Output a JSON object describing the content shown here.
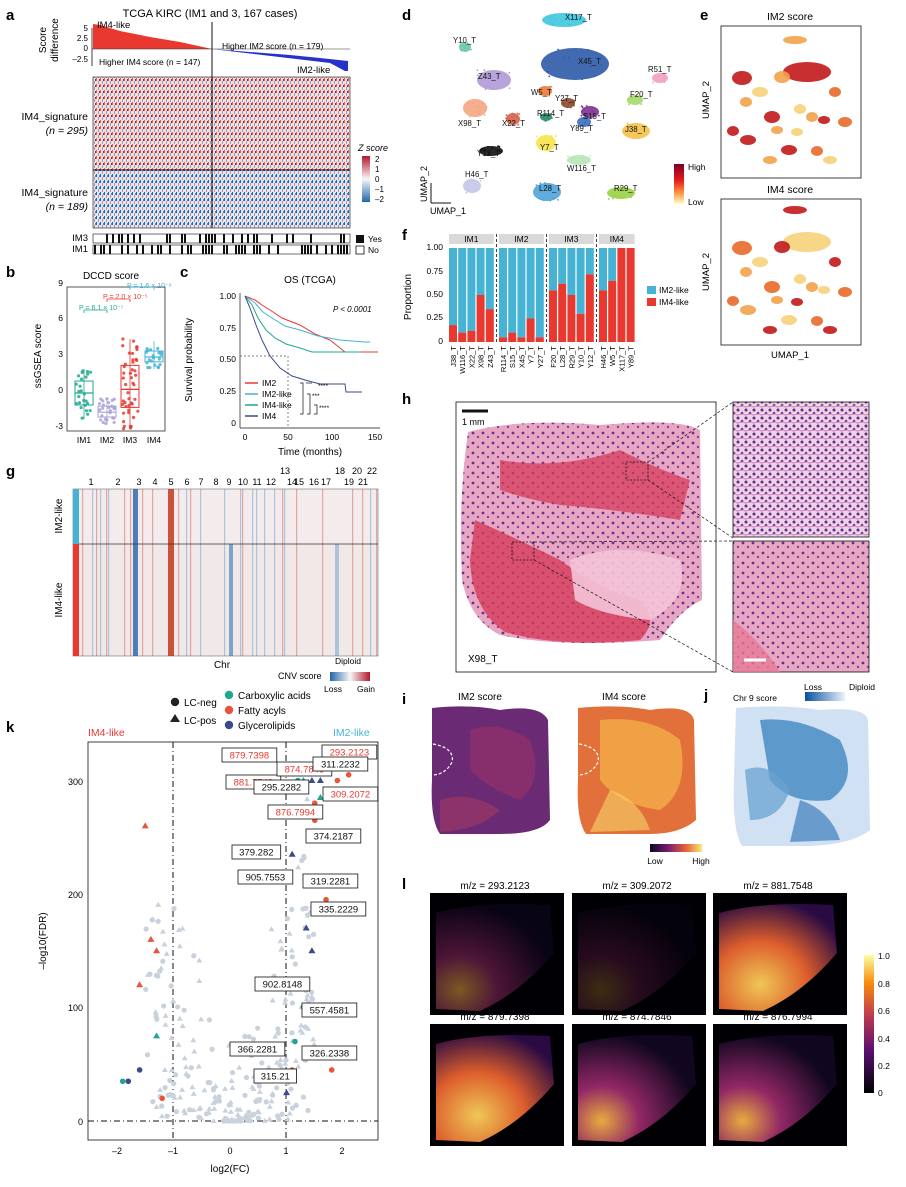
{
  "panels": {
    "a": "a",
    "b": "b",
    "c": "c",
    "d": "d",
    "e": "e",
    "f": "f",
    "g": "g",
    "h": "h",
    "i": "i",
    "j": "j",
    "k": "k",
    "l": "l"
  },
  "a": {
    "title": "TCGA KIRC (IM1 and 3, 167 cases)",
    "ylabel1": "Score",
    "ylabel2": "difference",
    "im4_like": "IM4-like",
    "im2_like": "IM2-like",
    "higher_im2": "Higher IM2 score (n = 179)",
    "higher_im4": "Higher IM4 score (n = 147)",
    "ticks": [
      "5",
      "2.5",
      "0",
      "–2.5"
    ],
    "row1a": "IM4_signature",
    "row1b": "(n = 295)",
    "row2a": "IM4_signature",
    "row2b": "(n = 189)",
    "zscore": "Z score",
    "zticks": [
      "2",
      "1",
      "0",
      "–1",
      "–2"
    ],
    "im3": "IM3",
    "im1": "IM1",
    "yes": "Yes",
    "no": "No"
  },
  "b": {
    "title": "DCCD score",
    "ylabel": "ssGSEA score",
    "groups": [
      "IM1",
      "IM2",
      "IM3",
      "IM4"
    ],
    "yticks": [
      "9",
      "6",
      "3",
      "0",
      "-3"
    ],
    "p1": "P = 1.6 × 10⁻⁸",
    "p2": "P = 2.0 × 10⁻⁵",
    "p3": "P = 6.1 × 10⁻⁷"
  },
  "c": {
    "title": "OS (TCGA)",
    "pval": "P < 0.0001",
    "ylabel": "Survival probability",
    "xlabel": "Time (months)",
    "yticks": [
      "1.00",
      "0.75",
      "0.50",
      "0.25",
      "0"
    ],
    "xticks": [
      "0",
      "50",
      "100",
      "150"
    ],
    "legend": [
      "IM2",
      "IM2-like",
      "IM4-like",
      "IM4"
    ],
    "stars": [
      "****",
      "***",
      "****",
      "****"
    ]
  },
  "d": {
    "clusters": [
      "X117_T",
      "Y10_T",
      "X45_T",
      "R51_T",
      "Z43_T",
      "W5_T",
      "F20_T",
      "Y27_T",
      "X98_T",
      "X22_T",
      "R114_T",
      "S15_T",
      "Y89_T",
      "J38_T",
      "Y7_T",
      "Y12_T",
      "W116_T",
      "H46_T",
      "L28_T",
      "R29_T"
    ],
    "umap1": "UMAP_1",
    "umap2": "UMAP_2",
    "high": "High",
    "low": "Low"
  },
  "e": {
    "title1": "IM2 score",
    "title2": "IM4 score",
    "umap1": "UMAP_1",
    "umap2a": "UMAP_2",
    "umap2b": "UMAP_2"
  },
  "f": {
    "ylabel": "Proportion",
    "yticks": [
      "1.00",
      "0.75",
      "0.50",
      "0.25",
      "0"
    ],
    "groups": [
      "IM1",
      "IM2",
      "IM3",
      "IM4"
    ],
    "legend": [
      "IM2-like",
      "IM4-like"
    ],
    "samples": [
      "J38_T",
      "W116_T",
      "X22_T",
      "X98_T",
      "Z43_T",
      "R114_T",
      "S15_T",
      "X45_T",
      "Y7_T",
      "Y27_T",
      "F20_T",
      "L28_T",
      "R29_T",
      "Y10_T",
      "Y12_T",
      "H46_T",
      "W5_T",
      "X117_T",
      "Y89_T"
    ],
    "im4_fraction": [
      0.18,
      0.1,
      0.12,
      0.5,
      0.35,
      0.05,
      0.1,
      0.05,
      0.25,
      0.05,
      0.55,
      0.62,
      0.5,
      0.3,
      0.72,
      0.55,
      0.65,
      1.0,
      1.0
    ]
  },
  "g": {
    "chr_numbers": [
      "1",
      "2",
      "3",
      "4",
      "5",
      "6",
      "7",
      "8",
      "9",
      "10",
      "11",
      "12",
      "13",
      "14",
      "15",
      "16",
      "17",
      "18",
      "19",
      "20",
      "21",
      "22"
    ],
    "im2_like": "IM2-like",
    "im4_like": "IM4-like",
    "chr": "Chr",
    "cnv": "CNV score",
    "diploid": "Diploid",
    "loss": "Loss",
    "gain": "Gain"
  },
  "h": {
    "scale": "1 mm",
    "sample": "X98_T"
  },
  "i": {
    "title1": "IM2 score",
    "title2": "IM4 score",
    "low": "Low",
    "high": "High"
  },
  "j": {
    "title": "Chr 9 score",
    "loss": "Loss",
    "diploid": "Diploid"
  },
  "k": {
    "legend": [
      "LC-neg",
      "LC-pos",
      "Carboxylic acids",
      "Fatty acyls",
      "Glycerolipids"
    ],
    "im4_like": "IM4-like",
    "im2_like": "IM2-like",
    "ylabel": "–log10(FDR)",
    "xlabel": "log2(FC)",
    "yticks": [
      "300",
      "200",
      "100",
      "0"
    ],
    "xticks": [
      "–2",
      "–1",
      "0",
      "1",
      "2"
    ],
    "red_labels": [
      "879.7398",
      "881.7548",
      "874.7846",
      "293.2123",
      "876.7994",
      "309.2072"
    ],
    "black_labels": [
      "311.2232",
      "295.2282",
      "374.2187",
      "379.282",
      "905.7553",
      "319.2281",
      "335.2229",
      "902.8148",
      "557.4581",
      "366.2281",
      "326.2338",
      "315.21"
    ]
  },
  "l": {
    "titles": [
      "m/z = 293.2123",
      "m/z = 309.2072",
      "m/z = 881.7548",
      "m/z = 879.7398",
      "m/z = 874.7846",
      "m/z = 876.7994"
    ],
    "cbar": [
      "1.0",
      "0.8",
      "0.6",
      "0.4",
      "0.2",
      "0"
    ]
  },
  "colors": {
    "red": "#e8382f",
    "blue": "#2f6fb5",
    "cyan": "#46b3d4",
    "teal": "#1fa88f",
    "navy": "#3a4a8a"
  }
}
